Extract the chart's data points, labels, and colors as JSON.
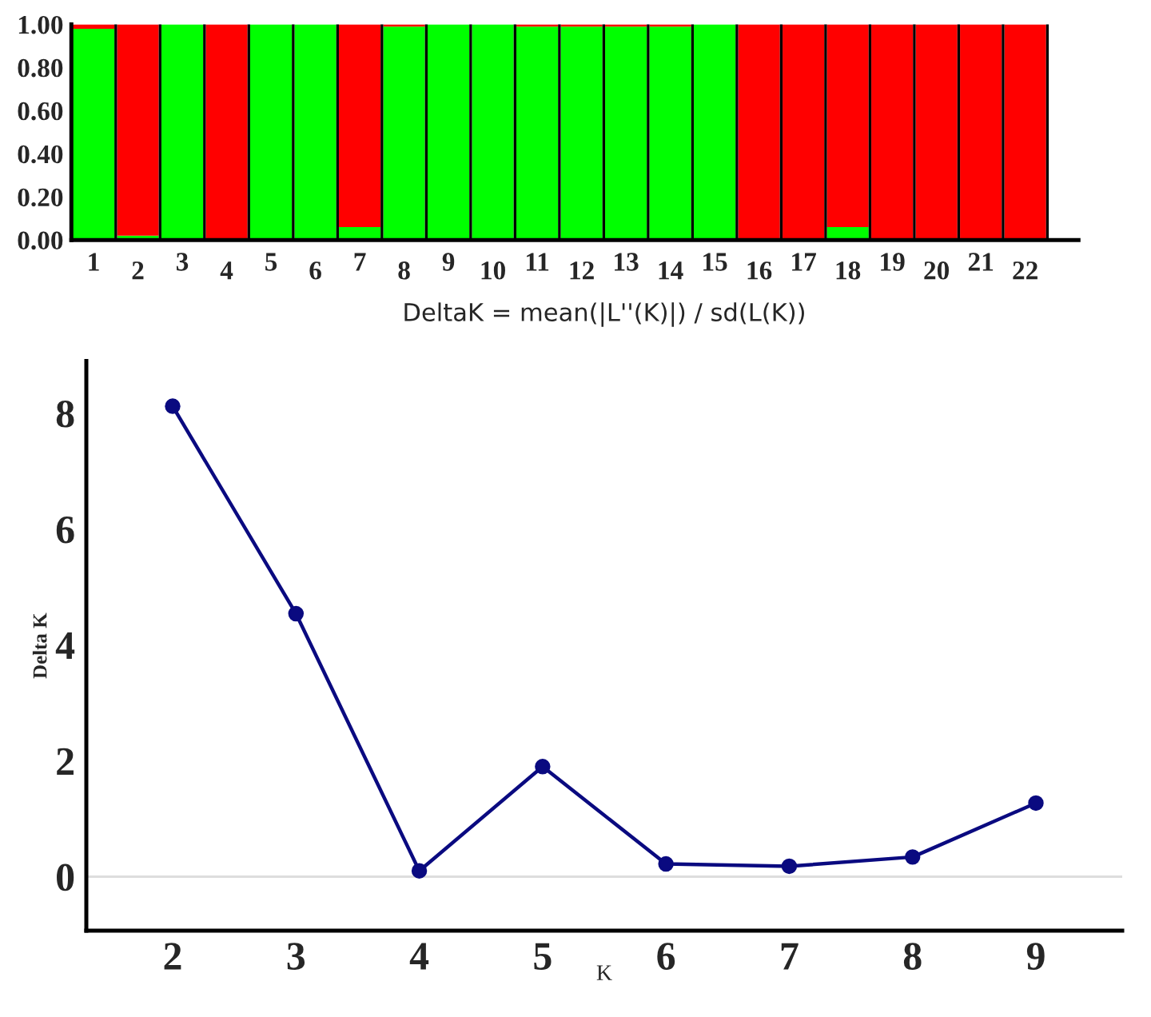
{
  "chart_data": [
    {
      "type": "bar",
      "stacked": true,
      "categories": [
        "1",
        "2",
        "3",
        "4",
        "5",
        "6",
        "7",
        "8",
        "9",
        "10",
        "11",
        "12",
        "13",
        "14",
        "15",
        "16",
        "17",
        "18",
        "19",
        "20",
        "21",
        "22"
      ],
      "series": [
        {
          "color": "#00ff00",
          "values": [
            0.98,
            0.02,
            1.0,
            0.0,
            1.0,
            1.0,
            0.06,
            0.99,
            1.0,
            1.0,
            0.99,
            0.99,
            0.99,
            0.99,
            1.0,
            0.0,
            0.0,
            0.06,
            0.0,
            0.0,
            0.0,
            0.0
          ]
        },
        {
          "color": "#ff0000",
          "values": [
            0.02,
            0.98,
            0.0,
            1.0,
            0.0,
            0.0,
            0.94,
            0.01,
            0.0,
            0.0,
            0.01,
            0.01,
            0.01,
            0.01,
            0.0,
            1.0,
            1.0,
            0.94,
            1.0,
            1.0,
            1.0,
            1.0
          ]
        }
      ],
      "ylim": [
        0,
        1
      ],
      "yticks": [
        {
          "value": 0,
          "label": "0.00"
        },
        {
          "value": 0.2,
          "label": "0.20"
        },
        {
          "value": 0.4,
          "label": "0.40"
        },
        {
          "value": 0.6,
          "label": "0.60"
        },
        {
          "value": 0.8,
          "label": "0.80"
        },
        {
          "value": 1,
          "label": "1.00"
        }
      ],
      "grid": false,
      "legend": false
    },
    {
      "type": "line",
      "title": "DeltaK = mean(|L''(K)|) / sd(L(K))",
      "xlabel": "K",
      "ylabel": "Delta K",
      "series": [
        {
          "color": "#0a0a80",
          "x": [
            2,
            3,
            4,
            5,
            6,
            7,
            8,
            9
          ],
          "values": [
            8.12,
            4.54,
            0.1,
            1.9,
            0.22,
            0.18,
            0.34,
            1.27
          ]
        }
      ],
      "marker": "circle",
      "line_style": "solid",
      "xlim": [
        1.3,
        9.7
      ],
      "ylim": [
        -0.93,
        8.9
      ],
      "xticks": [
        2,
        3,
        4,
        5,
        6,
        7,
        8,
        9
      ],
      "yticks": [
        0,
        2,
        4,
        6,
        8
      ],
      "ref_lines": [
        {
          "axis": "y",
          "value": 0,
          "color": "#dddddd"
        }
      ],
      "grid": false,
      "legend": false
    }
  ]
}
